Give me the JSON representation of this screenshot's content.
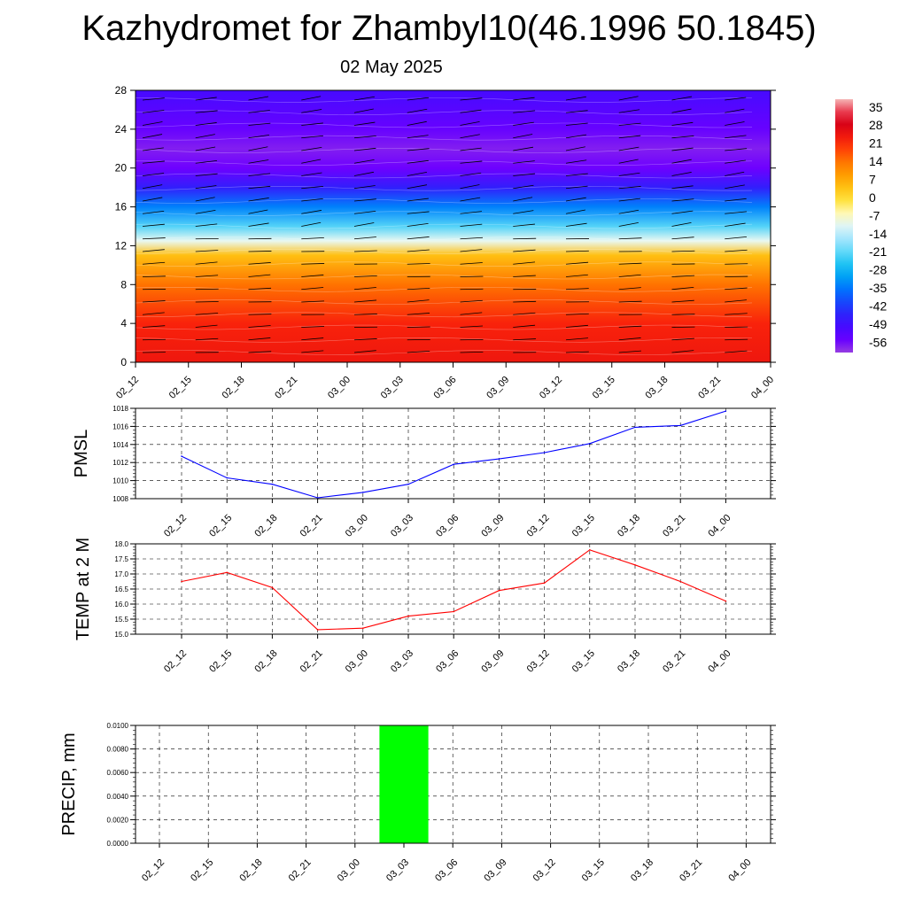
{
  "header": {
    "title": "Kazhydromet for Zhambyl10(46.1996 50.1845)",
    "date": "02 May 2025"
  },
  "colors": {
    "pmsl_line": "#0000ff",
    "temp_line": "#ff0000",
    "precip_bar": "#00ff00",
    "grid": "#000000"
  },
  "time_labels": [
    "02_12",
    "02_15",
    "02_18",
    "02_21",
    "03_00",
    "03_03",
    "03_06",
    "03_09",
    "03_12",
    "03_15",
    "03_18",
    "03_21",
    "04_00"
  ],
  "chart_data": [
    {
      "type": "heatmap",
      "title": "",
      "ylabel": "",
      "yticks": [
        "0",
        "4",
        "8",
        "12",
        "16",
        "20",
        "24",
        "28"
      ],
      "ylim": [
        0,
        28
      ],
      "colorbar": {
        "labels": [
          "35",
          "28",
          "21",
          "14",
          "7",
          "0",
          "-7",
          "-14",
          "-21",
          "-28",
          "-35",
          "-42",
          "-49",
          "-56"
        ],
        "range": [
          -60,
          38
        ]
      },
      "temperature_profile": [
        {
          "level": 0,
          "value": 24
        },
        {
          "level": 4,
          "value": 22
        },
        {
          "level": 8,
          "value": 14
        },
        {
          "level": 11,
          "value": 4
        },
        {
          "level": 12.5,
          "value": -10
        },
        {
          "level": 14,
          "value": -22
        },
        {
          "level": 16,
          "value": -34
        },
        {
          "level": 18,
          "value": -46
        },
        {
          "level": 20,
          "value": -56
        },
        {
          "level": 22,
          "value": -58
        },
        {
          "level": 24,
          "value": -55
        },
        {
          "level": 28,
          "value": -50
        }
      ],
      "wind_barbs": "shown"
    },
    {
      "type": "line",
      "ylabel": "PMSL",
      "yticks": [
        "1008",
        "1010",
        "1012",
        "1014",
        "1016",
        "1018"
      ],
      "ylim": [
        1008,
        1018
      ],
      "series": [
        {
          "values": [
            1012.7,
            1010.3,
            1009.6,
            1008.1,
            1008.7,
            1009.6,
            1011.8,
            1012.4,
            1013.1,
            1014.1,
            1015.9,
            1016.1,
            1017.7
          ]
        }
      ],
      "grid": true
    },
    {
      "type": "line",
      "ylabel": "TEMP at 2 M",
      "yticks": [
        "15.0",
        "15.5",
        "16.0",
        "16.5",
        "17.0",
        "17.5",
        "18.0"
      ],
      "ylim": [
        15.0,
        18.0
      ],
      "series": [
        {
          "values": [
            16.75,
            17.05,
            16.55,
            15.15,
            15.2,
            15.6,
            15.75,
            16.45,
            16.7,
            17.8,
            17.3,
            16.75,
            16.1
          ]
        }
      ],
      "grid": true
    },
    {
      "type": "bar",
      "ylabel": "PRECIP, mm",
      "yticks": [
        "0.0000",
        "0.0020",
        "0.0040",
        "0.0060",
        "0.0080",
        "0.0100"
      ],
      "ylim": [
        0,
        0.01
      ],
      "values": [
        0,
        0,
        0,
        0,
        0,
        0.01,
        0,
        0,
        0,
        0,
        0,
        0,
        0
      ],
      "grid": true
    }
  ]
}
